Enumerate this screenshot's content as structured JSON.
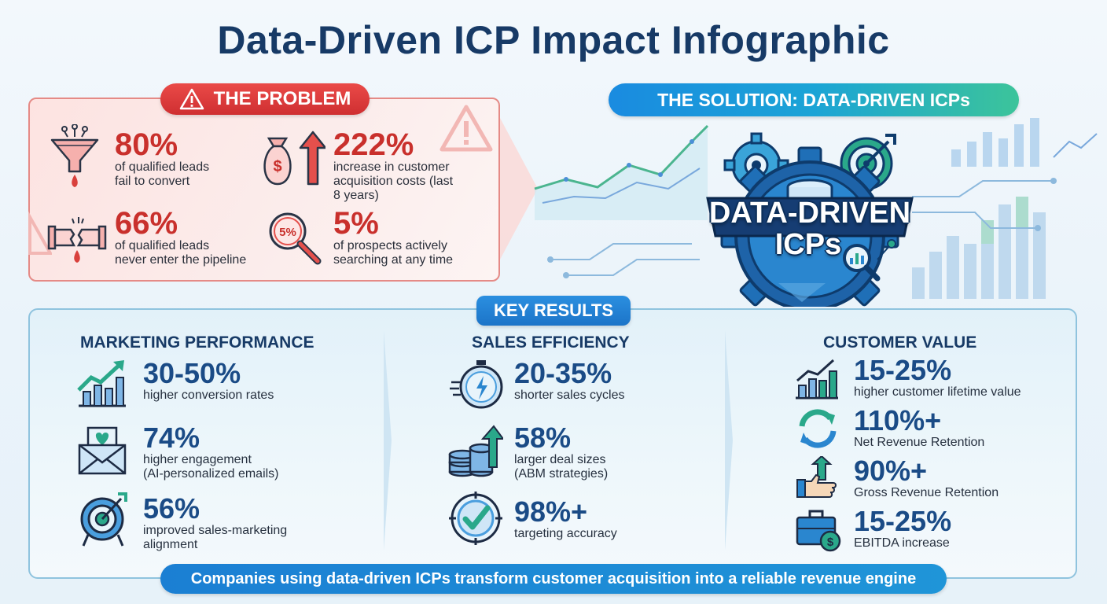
{
  "title": "Data-Driven ICP Impact Infographic",
  "problem": {
    "heading": "THE PROBLEM",
    "stats": [
      {
        "value": "80%",
        "desc_line1": "of qualified leads",
        "desc_line2": "fail to convert",
        "icon": "funnel-icon"
      },
      {
        "value": "222%",
        "desc_line1": "increase in customer",
        "desc_line2": "acquisition costs (last",
        "desc_line3": "8 years)",
        "icon": "money-bag-icon"
      },
      {
        "value": "66%",
        "desc_line1": "of qualified leads",
        "desc_line2": "never enter the pipeline",
        "icon": "broken-pipe-icon"
      },
      {
        "value": "5%",
        "desc_line1": "of prospects actively",
        "desc_line2": "searching at any time",
        "icon": "magnifier-icon",
        "icon_text": "5%"
      }
    ]
  },
  "solution": {
    "heading": "THE SOLUTION: DATA-DRIVEN ICPs",
    "emblem_line1": "DATA-DRIVEN",
    "emblem_line2": "ICPs"
  },
  "key_results": {
    "heading": "KEY RESULTS",
    "columns": [
      {
        "title": "MARKETING PERFORMANCE",
        "items": [
          {
            "value": "30-50%",
            "desc_line1": "higher conversion rates",
            "icon": "growth-chart-icon"
          },
          {
            "value": "74%",
            "desc_line1": "higher engagement",
            "desc_line2": "(AI-personalized emails)",
            "icon": "envelope-heart-icon"
          },
          {
            "value": "56%",
            "desc_line1": "improved sales-marketing",
            "desc_line2": "alignment",
            "icon": "target-icon"
          }
        ]
      },
      {
        "title": "SALES EFFICIENCY",
        "items": [
          {
            "value": "20-35%",
            "desc_line1": "shorter sales cycles",
            "icon": "stopwatch-icon"
          },
          {
            "value": "58%",
            "desc_line1": "larger deal sizes",
            "desc_line2": "(ABM strategies)",
            "icon": "coin-stack-icon"
          },
          {
            "value": "98%+",
            "desc_line1": "targeting accuracy",
            "icon": "check-target-icon"
          }
        ]
      },
      {
        "title": "CUSTOMER VALUE",
        "items": [
          {
            "value": "15-25%",
            "desc_line1": "higher customer lifetime value",
            "icon": "bar-chart-icon"
          },
          {
            "value": "110%+",
            "desc_line1": "Net Revenue Retention",
            "icon": "refresh-icon"
          },
          {
            "value": "90%+",
            "desc_line1": "Gross Revenue Retention",
            "icon": "thumbs-up-icon"
          },
          {
            "value": "15-25%",
            "desc_line1": "EBITDA increase",
            "icon": "briefcase-icon"
          }
        ]
      }
    ]
  },
  "banner": "Companies using data-driven ICPs transform customer acquisition into a reliable revenue engine",
  "colors": {
    "problem_red": "#c9302c",
    "navy": "#173a66",
    "result_blue": "#1a4b86",
    "accent_teal": "#2aa88a"
  }
}
